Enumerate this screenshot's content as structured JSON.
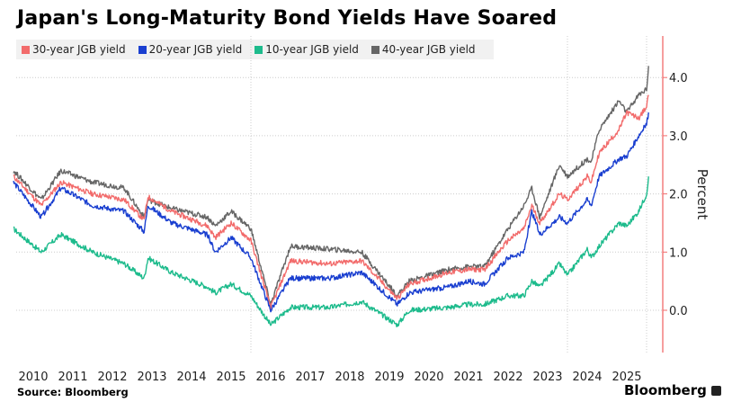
{
  "chart_data": {
    "type": "line",
    "title": "Japan's Long-Maturity Bond Yields Have Soared",
    "ylabel": "Percent",
    "xlabel": "",
    "ylim": [
      -0.7,
      4.7
    ],
    "xlim": [
      2010.0,
      2026.1
    ],
    "yticks": [
      0,
      1,
      2,
      3,
      4
    ],
    "ytick_labels": [
      "0.0",
      "1.0",
      "2.0",
      "3.0",
      "4.0"
    ],
    "xtick_labels": [
      "2010",
      "2011",
      "2012",
      "2013",
      "2014",
      "2015",
      "2016",
      "2017",
      "2018",
      "2019",
      "2020",
      "2021",
      "2022",
      "2023",
      "2024",
      "2025"
    ],
    "legend_position": "top-left",
    "x": [
      2010.0,
      2010.7,
      2011.2,
      2012.0,
      2012.8,
      2013.3,
      2013.4,
      2014.0,
      2014.9,
      2015.1,
      2015.5,
      2016.0,
      2016.5,
      2017.0,
      2018.0,
      2018.8,
      2019.7,
      2020.0,
      2021.0,
      2021.5,
      2021.9,
      2022.5,
      2022.9,
      2023.1,
      2023.3,
      2023.8,
      2024.0,
      2024.5,
      2024.6,
      2024.8,
      2025.3,
      2025.5,
      2025.8,
      2026.0,
      2026.05
    ],
    "series": [
      {
        "name": "30-year JGB yield",
        "color": "#f26b6b",
        "values": [
          2.3,
          1.8,
          2.2,
          2.0,
          1.9,
          1.55,
          1.95,
          1.7,
          1.45,
          1.25,
          1.5,
          1.2,
          0.05,
          0.85,
          0.8,
          0.85,
          0.2,
          0.45,
          0.65,
          0.7,
          0.7,
          1.2,
          1.4,
          1.8,
          1.5,
          2.0,
          1.9,
          2.3,
          2.2,
          2.7,
          3.1,
          3.4,
          3.3,
          3.5,
          3.7
        ]
      },
      {
        "name": "20-year JGB yield",
        "color": "#1a3fd0",
        "values": [
          2.2,
          1.6,
          2.1,
          1.8,
          1.7,
          1.35,
          1.8,
          1.5,
          1.3,
          1.0,
          1.25,
          0.9,
          0.0,
          0.55,
          0.55,
          0.65,
          0.1,
          0.3,
          0.4,
          0.5,
          0.45,
          0.9,
          1.0,
          1.7,
          1.3,
          1.6,
          1.5,
          1.9,
          1.8,
          2.3,
          2.6,
          2.65,
          3.0,
          3.2,
          3.4
        ]
      },
      {
        "name": "10-year JGB yield",
        "color": "#1dbb8c",
        "values": [
          1.4,
          1.0,
          1.3,
          1.0,
          0.8,
          0.55,
          0.9,
          0.65,
          0.4,
          0.3,
          0.45,
          0.25,
          -0.25,
          0.05,
          0.05,
          0.15,
          -0.25,
          0.0,
          0.05,
          0.1,
          0.1,
          0.25,
          0.25,
          0.5,
          0.4,
          0.8,
          0.6,
          1.05,
          0.9,
          1.1,
          1.5,
          1.45,
          1.7,
          2.0,
          2.3
        ]
      },
      {
        "name": "40-year JGB yield",
        "color": "#666666",
        "values": [
          2.4,
          1.9,
          2.4,
          2.2,
          2.1,
          1.6,
          1.9,
          1.75,
          1.6,
          1.45,
          1.7,
          1.4,
          0.1,
          1.1,
          1.05,
          1.0,
          0.25,
          0.5,
          0.7,
          0.75,
          0.75,
          1.4,
          1.8,
          2.1,
          1.6,
          2.5,
          2.3,
          2.6,
          2.55,
          3.1,
          3.6,
          3.4,
          3.7,
          3.8,
          4.2
        ]
      }
    ]
  },
  "footer": {
    "source": "Source: Bloomberg",
    "brand": "Bloomberg"
  },
  "colors": {
    "axis": "#f26b6b",
    "grid": "#cccccc"
  }
}
